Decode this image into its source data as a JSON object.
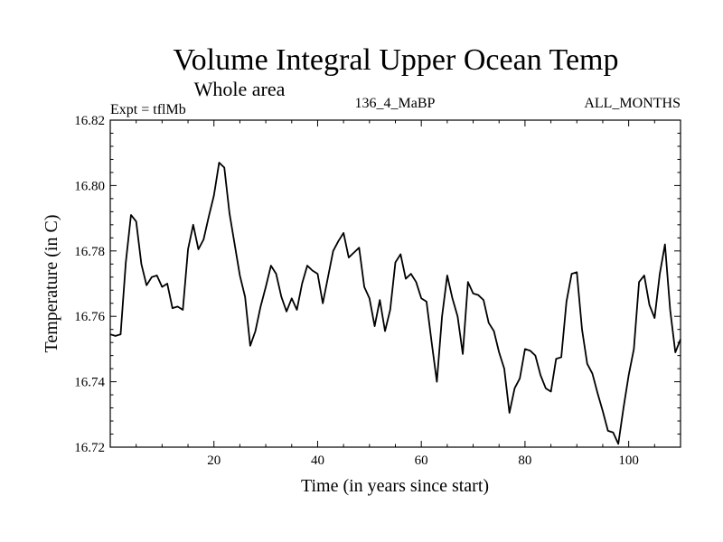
{
  "chart_data": {
    "type": "line",
    "title": "Volume Integral Upper Ocean Temp",
    "subtitle": "Whole area",
    "expt_label": "Expt = tflMb",
    "run_label": "136_4_MaBP",
    "period_label": "ALL_MONTHS",
    "xlabel": "Time (in years since start)",
    "ylabel": "Temperature (in C)",
    "xlim": [
      0,
      110
    ],
    "ylim": [
      16.72,
      16.82
    ],
    "x_ticks": [
      20,
      40,
      60,
      80,
      100
    ],
    "x_tick_labels": [
      "20",
      "40",
      "60",
      "80",
      "100"
    ],
    "y_ticks": [
      16.72,
      16.74,
      16.76,
      16.78,
      16.8,
      16.82
    ],
    "y_tick_labels": [
      "16.72",
      "16.74",
      "16.76",
      "16.78",
      "16.80",
      "16.82"
    ],
    "grid": false,
    "series": [
      {
        "name": "Temperature",
        "x": [
          0,
          1,
          2,
          3,
          4,
          5,
          6,
          7,
          8,
          9,
          10,
          11,
          12,
          13,
          14,
          15,
          16,
          17,
          18,
          19,
          20,
          21,
          22,
          23,
          24,
          25,
          26,
          27,
          28,
          29,
          30,
          31,
          32,
          33,
          34,
          35,
          36,
          37,
          38,
          39,
          40,
          41,
          42,
          43,
          44,
          45,
          46,
          47,
          48,
          49,
          50,
          51,
          52,
          53,
          54,
          55,
          56,
          57,
          58,
          59,
          60,
          61,
          62,
          63,
          64,
          65,
          66,
          67,
          68,
          69,
          70,
          71,
          72,
          73,
          74,
          75,
          76,
          77,
          78,
          79,
          80,
          81,
          82,
          83,
          84,
          85,
          86,
          87,
          88,
          89,
          90,
          91,
          92,
          93,
          94,
          95,
          96,
          97,
          98,
          99,
          100,
          101,
          102,
          103,
          104,
          105,
          106,
          107,
          108,
          109,
          110
        ],
        "values": [
          16.7545,
          16.754,
          16.7545,
          16.7765,
          16.791,
          16.789,
          16.776,
          16.7695,
          16.772,
          16.7725,
          16.769,
          16.77,
          16.7625,
          16.763,
          16.762,
          16.7805,
          16.788,
          16.7805,
          16.7835,
          16.7905,
          16.797,
          16.807,
          16.8055,
          16.7915,
          16.782,
          16.7725,
          16.766,
          16.751,
          16.7555,
          16.763,
          16.769,
          16.7755,
          16.773,
          16.766,
          16.7615,
          16.7655,
          16.762,
          16.77,
          16.7755,
          16.774,
          16.773,
          16.764,
          16.772,
          16.78,
          16.783,
          16.7855,
          16.778,
          16.7795,
          16.781,
          16.769,
          16.7655,
          16.757,
          16.765,
          16.7555,
          16.762,
          16.7765,
          16.779,
          16.7715,
          16.773,
          16.7705,
          16.7655,
          16.7645,
          16.752,
          16.74,
          16.76,
          16.7725,
          16.7655,
          16.76,
          16.7485,
          16.7705,
          16.767,
          16.7665,
          16.765,
          16.758,
          16.7555,
          16.749,
          16.744,
          16.7305,
          16.738,
          16.741,
          16.75,
          16.7495,
          16.748,
          16.742,
          16.738,
          16.737,
          16.747,
          16.7475,
          16.7645,
          16.773,
          16.7735,
          16.756,
          16.7455,
          16.7425,
          16.7365,
          16.731,
          16.725,
          16.7245,
          16.721,
          16.732,
          16.742,
          16.75,
          16.7705,
          16.7725,
          16.7635,
          16.7595,
          16.773,
          16.782,
          16.762,
          16.749,
          16.753
        ]
      }
    ]
  }
}
